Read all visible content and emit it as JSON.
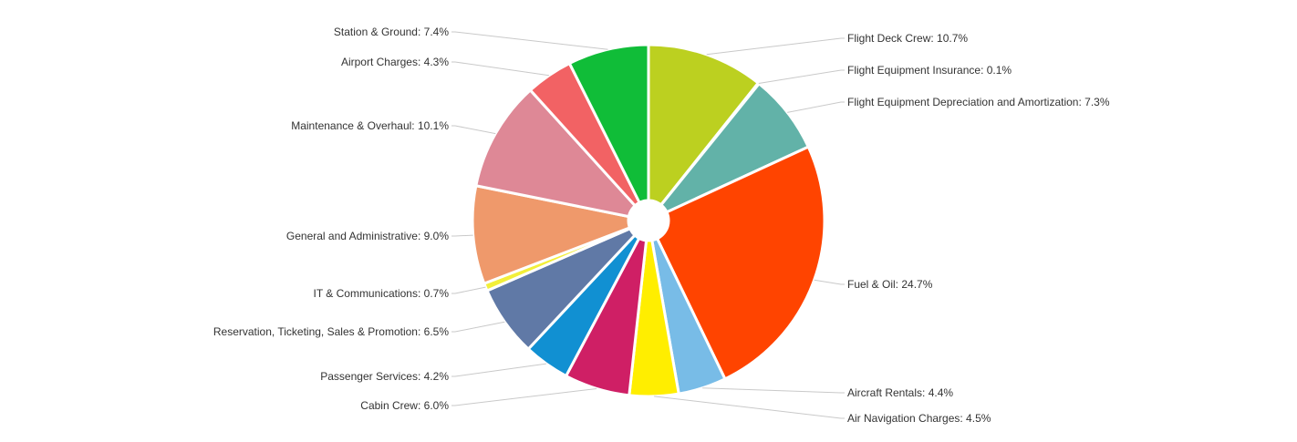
{
  "chart_data": {
    "type": "pie",
    "title": "",
    "legend": "none",
    "slices": [
      {
        "name": "Flight Deck Crew",
        "value": 10.7,
        "label": "Flight Deck Crew: 10.7%",
        "color": "#bcd020"
      },
      {
        "name": "Flight Equipment Insurance",
        "value": 0.1,
        "label": "Flight Equipment Insurance: 0.1%",
        "color": "#f6f3a8"
      },
      {
        "name": "Flight Equipment Depreciation and Amortization",
        "value": 7.3,
        "label": "Flight Equipment Depreciation and Amortization: 7.3%",
        "color": "#62b2a8"
      },
      {
        "name": "Fuel & Oil",
        "value": 24.7,
        "label": "Fuel & Oil: 24.7%",
        "color": "#ff4400"
      },
      {
        "name": "Aircraft Rentals",
        "value": 4.4,
        "label": "Aircraft Rentals: 4.4%",
        "color": "#78bce7"
      },
      {
        "name": "Air Navigation Charges",
        "value": 4.5,
        "label": "Air Navigation Charges: 4.5%",
        "color": "#ffee00"
      },
      {
        "name": "Cabin Crew",
        "value": 6.0,
        "label": "Cabin Crew: 6.0%",
        "color": "#cf1f65"
      },
      {
        "name": "Passenger Services",
        "value": 4.2,
        "label": "Passenger Services: 4.2%",
        "color": "#1190d2"
      },
      {
        "name": "Reservation, Ticketing, Sales & Promotion",
        "value": 6.5,
        "label": "Reservation, Ticketing, Sales & Promotion: 6.5%",
        "color": "#6079a6"
      },
      {
        "name": "IT & Communications",
        "value": 0.7,
        "label": "IT & Communications: 0.7%",
        "color": "#f2ef3a"
      },
      {
        "name": "General and Administrative",
        "value": 9.0,
        "label": "General and Administrative: 9.0%",
        "color": "#ef996b"
      },
      {
        "name": "Maintenance & Overhaul",
        "value": 10.1,
        "label": "Maintenance & Overhaul: 10.1%",
        "color": "#de8896"
      },
      {
        "name": "Airport Charges",
        "value": 4.3,
        "label": "Airport Charges: 4.3%",
        "color": "#f26264"
      },
      {
        "name": "Station & Ground",
        "value": 7.4,
        "label": "Station & Ground: 7.4%",
        "color": "#10bd38"
      }
    ]
  }
}
